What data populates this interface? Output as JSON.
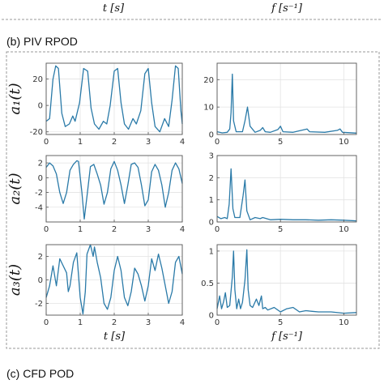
{
  "top_strip": {
    "xlabel_left": "t [s]",
    "xlabel_right": "f [s⁻¹]"
  },
  "section_b": {
    "title": "(b) PIV RPOD"
  },
  "section_c": {
    "title": "(c) CFD POD"
  },
  "colors": {
    "series": "#2a7aa8",
    "frame": "#555555",
    "grid": "#e3e3e3",
    "dash": "#999999"
  },
  "chart_data": [
    {
      "type": "line",
      "row": 1,
      "column": "time",
      "ylabel": "a₁(t)",
      "xlabel": "",
      "xlim": [
        0,
        4
      ],
      "ylim": [
        -22,
        32
      ],
      "xticks": [
        0,
        1,
        2,
        3,
        4
      ],
      "yticks": [
        -20,
        0,
        20
      ],
      "series": [
        {
          "values": [
            [
              0,
              -12
            ],
            [
              0.1,
              -10
            ],
            [
              0.2,
              20
            ],
            [
              0.28,
              30
            ],
            [
              0.36,
              28
            ],
            [
              0.46,
              -6
            ],
            [
              0.56,
              -16
            ],
            [
              0.68,
              -14
            ],
            [
              0.78,
              -8
            ],
            [
              0.85,
              -12
            ],
            [
              0.98,
              2
            ],
            [
              1.1,
              28
            ],
            [
              1.22,
              26
            ],
            [
              1.32,
              -2
            ],
            [
              1.42,
              -14
            ],
            [
              1.55,
              -18
            ],
            [
              1.68,
              -12
            ],
            [
              1.78,
              -14
            ],
            [
              1.88,
              0
            ],
            [
              2.0,
              26
            ],
            [
              2.1,
              28
            ],
            [
              2.2,
              2
            ],
            [
              2.3,
              -14
            ],
            [
              2.42,
              -18
            ],
            [
              2.55,
              -10
            ],
            [
              2.65,
              -14
            ],
            [
              2.78,
              -4
            ],
            [
              2.9,
              24
            ],
            [
              3.0,
              28
            ],
            [
              3.1,
              2
            ],
            [
              3.2,
              -16
            ],
            [
              3.34,
              -20
            ],
            [
              3.48,
              -10
            ],
            [
              3.6,
              -16
            ],
            [
              3.7,
              4
            ],
            [
              3.8,
              30
            ],
            [
              3.88,
              28
            ],
            [
              3.96,
              -4
            ],
            [
              4.0,
              -14
            ]
          ]
        }
      ],
      "grid": true
    },
    {
      "type": "line",
      "row": 1,
      "column": "frequency",
      "xlabel": "",
      "xlim": [
        0,
        11
      ],
      "ylim": [
        0,
        26
      ],
      "xticks": [
        0,
        5,
        10
      ],
      "yticks": [
        0,
        10,
        20
      ],
      "series": [
        {
          "values": [
            [
              0,
              1
            ],
            [
              0.4,
              0.6
            ],
            [
              0.8,
              0.8
            ],
            [
              1.0,
              2
            ],
            [
              1.1,
              8
            ],
            [
              1.2,
              22
            ],
            [
              1.3,
              5
            ],
            [
              1.5,
              1
            ],
            [
              2.0,
              1
            ],
            [
              2.2,
              5
            ],
            [
              2.4,
              10
            ],
            [
              2.6,
              3
            ],
            [
              3.0,
              0.8
            ],
            [
              3.4,
              1.5
            ],
            [
              3.6,
              2.5
            ],
            [
              3.8,
              1
            ],
            [
              4.2,
              0.8
            ],
            [
              4.8,
              1.8
            ],
            [
              5.0,
              3
            ],
            [
              5.2,
              1
            ],
            [
              6.0,
              0.8
            ],
            [
              7.1,
              2
            ],
            [
              7.3,
              1
            ],
            [
              8.5,
              0.8
            ],
            [
              9.5,
              1.5
            ],
            [
              9.7,
              2
            ],
            [
              9.9,
              0.8
            ],
            [
              11,
              0.5
            ]
          ]
        }
      ],
      "grid": true
    },
    {
      "type": "line",
      "row": 2,
      "column": "time",
      "ylabel": "a₂(t)",
      "xlabel": "",
      "xlim": [
        0,
        4
      ],
      "ylim": [
        -6,
        3
      ],
      "xticks": [
        0,
        1,
        2,
        3,
        4
      ],
      "yticks": [
        -4,
        -2,
        0,
        2
      ],
      "series": [
        {
          "values": [
            [
              0,
              1.4
            ],
            [
              0.1,
              2
            ],
            [
              0.2,
              1.6
            ],
            [
              0.3,
              0.5
            ],
            [
              0.4,
              -2
            ],
            [
              0.5,
              -3.5
            ],
            [
              0.6,
              -2
            ],
            [
              0.7,
              1
            ],
            [
              0.8,
              1.8
            ],
            [
              0.9,
              2.3
            ],
            [
              0.95,
              2.2
            ],
            [
              1.05,
              -2
            ],
            [
              1.12,
              -5.6
            ],
            [
              1.2,
              -2.5
            ],
            [
              1.3,
              1.5
            ],
            [
              1.4,
              1.8
            ],
            [
              1.5,
              0.5
            ],
            [
              1.6,
              -1
            ],
            [
              1.7,
              -3.6
            ],
            [
              1.8,
              -2
            ],
            [
              1.9,
              1.2
            ],
            [
              2.0,
              2.2
            ],
            [
              2.1,
              1
            ],
            [
              2.2,
              -1
            ],
            [
              2.3,
              -3.5
            ],
            [
              2.4,
              -1
            ],
            [
              2.5,
              1.8
            ],
            [
              2.6,
              2
            ],
            [
              2.7,
              1.4
            ],
            [
              2.8,
              -1
            ],
            [
              2.9,
              -3.8
            ],
            [
              3.0,
              -3
            ],
            [
              3.1,
              0.8
            ],
            [
              3.2,
              1.8
            ],
            [
              3.3,
              1
            ],
            [
              3.4,
              -1
            ],
            [
              3.5,
              -4
            ],
            [
              3.6,
              -2
            ],
            [
              3.7,
              1
            ],
            [
              3.8,
              2
            ],
            [
              3.9,
              1.2
            ],
            [
              4.0,
              -0.8
            ]
          ]
        }
      ],
      "grid": true
    },
    {
      "type": "line",
      "row": 2,
      "column": "frequency",
      "xlabel": "",
      "xlim": [
        0,
        11
      ],
      "ylim": [
        0,
        3
      ],
      "xticks": [
        0,
        5,
        10
      ],
      "yticks": [
        0,
        1,
        2,
        3
      ],
      "series": [
        {
          "values": [
            [
              0,
              0.25
            ],
            [
              0.3,
              0.15
            ],
            [
              0.6,
              0.2
            ],
            [
              0.8,
              0.15
            ],
            [
              0.95,
              0.8
            ],
            [
              1.1,
              2.4
            ],
            [
              1.25,
              0.6
            ],
            [
              1.4,
              0.2
            ],
            [
              1.8,
              0.2
            ],
            [
              2.05,
              1.2
            ],
            [
              2.2,
              1.9
            ],
            [
              2.35,
              0.5
            ],
            [
              2.6,
              0.1
            ],
            [
              3.0,
              0.2
            ],
            [
              3.4,
              0.15
            ],
            [
              3.6,
              0.2
            ],
            [
              4.2,
              0.1
            ],
            [
              5,
              0.12
            ],
            [
              6,
              0.1
            ],
            [
              7,
              0.1
            ],
            [
              8,
              0.08
            ],
            [
              9,
              0.1
            ],
            [
              10,
              0.08
            ],
            [
              11,
              0.05
            ]
          ]
        }
      ],
      "grid": true
    },
    {
      "type": "line",
      "row": 3,
      "column": "time",
      "ylabel": "a₃(t)",
      "xlabel": "t [s]",
      "xlim": [
        0,
        4
      ],
      "ylim": [
        -3,
        3
      ],
      "xticks": [
        0,
        1,
        2,
        3,
        4
      ],
      "yticks": [
        -2,
        0,
        2
      ],
      "series": [
        {
          "values": [
            [
              0,
              -1.5
            ],
            [
              0.1,
              -0.5
            ],
            [
              0.2,
              1.2
            ],
            [
              0.3,
              -0.5
            ],
            [
              0.4,
              1.8
            ],
            [
              0.5,
              1.2
            ],
            [
              0.6,
              0.6
            ],
            [
              0.65,
              -1
            ],
            [
              0.7,
              -0.5
            ],
            [
              0.8,
              1.5
            ],
            [
              0.9,
              2.3
            ],
            [
              1.0,
              -1.5
            ],
            [
              1.08,
              -2.9
            ],
            [
              1.15,
              -1
            ],
            [
              1.2,
              2.2
            ],
            [
              1.3,
              3
            ],
            [
              1.38,
              2
            ],
            [
              1.42,
              2.8
            ],
            [
              1.5,
              1.5
            ],
            [
              1.6,
              0.2
            ],
            [
              1.7,
              -2
            ],
            [
              1.8,
              -2.5
            ],
            [
              1.9,
              -1.5
            ],
            [
              2.0,
              0.8
            ],
            [
              2.1,
              2
            ],
            [
              2.2,
              0.8
            ],
            [
              2.3,
              -1.5
            ],
            [
              2.4,
              -2.2
            ],
            [
              2.5,
              -1
            ],
            [
              2.6,
              1
            ],
            [
              2.7,
              0.5
            ],
            [
              2.8,
              -0.5
            ],
            [
              2.9,
              -1.8
            ],
            [
              3.0,
              -0.5
            ],
            [
              3.1,
              1.8
            ],
            [
              3.2,
              0.8
            ],
            [
              3.3,
              2.2
            ],
            [
              3.4,
              1
            ],
            [
              3.5,
              -0.5
            ],
            [
              3.6,
              -2
            ],
            [
              3.7,
              -1
            ],
            [
              3.8,
              1.5
            ],
            [
              3.9,
              2
            ],
            [
              4.0,
              0.5
            ]
          ]
        }
      ],
      "grid": true
    },
    {
      "type": "line",
      "row": 3,
      "column": "frequency",
      "xlabel": "f [s⁻¹]",
      "xlim": [
        0,
        11
      ],
      "ylim": [
        0,
        1.1
      ],
      "xticks": [
        0,
        5,
        10
      ],
      "yticks": [
        0,
        0.5,
        1
      ],
      "series": [
        {
          "values": [
            [
              0,
              0.1
            ],
            [
              0.2,
              0.3
            ],
            [
              0.35,
              0.1
            ],
            [
              0.5,
              0.2
            ],
            [
              0.65,
              0.35
            ],
            [
              0.8,
              0.12
            ],
            [
              1.0,
              0.15
            ],
            [
              1.2,
              0.6
            ],
            [
              1.3,
              1.0
            ],
            [
              1.4,
              0.4
            ],
            [
              1.55,
              0.1
            ],
            [
              1.7,
              0.25
            ],
            [
              1.85,
              0.1
            ],
            [
              2.0,
              0.2
            ],
            [
              2.2,
              0.55
            ],
            [
              2.35,
              1.02
            ],
            [
              2.45,
              0.4
            ],
            [
              2.6,
              0.15
            ],
            [
              2.8,
              0.12
            ],
            [
              3.1,
              0.25
            ],
            [
              3.3,
              0.15
            ],
            [
              3.5,
              0.3
            ],
            [
              3.6,
              0.1
            ],
            [
              3.8,
              0.12
            ],
            [
              4.0,
              0.08
            ],
            [
              4.5,
              0.12
            ],
            [
              5,
              0.05
            ],
            [
              5.5,
              0.1
            ],
            [
              6,
              0.12
            ],
            [
              6.5,
              0.05
            ],
            [
              7,
              0.07
            ],
            [
              7.5,
              0.06
            ],
            [
              8,
              0.05
            ],
            [
              9,
              0.05
            ],
            [
              10,
              0.03
            ],
            [
              11,
              0.04
            ]
          ]
        }
      ],
      "grid": true
    }
  ]
}
